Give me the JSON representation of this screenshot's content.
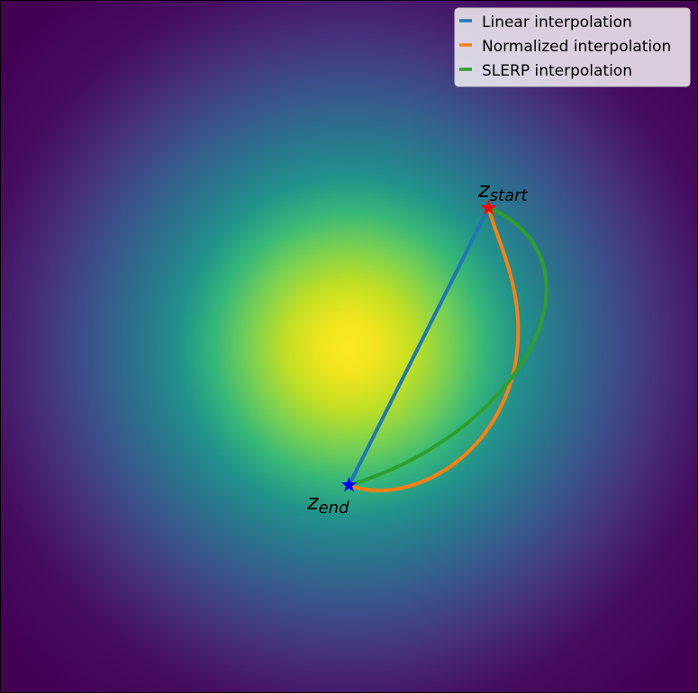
{
  "chart_data": {
    "type": "line",
    "title": "",
    "xlabel": "",
    "ylabel": "",
    "xlim": [
      -2.5,
      2.5
    ],
    "ylim": [
      -2.5,
      2.5
    ],
    "grid": false,
    "axes_visible": false,
    "background": {
      "type": "density",
      "description_key": "gaussian",
      "center": [
        0,
        0
      ],
      "sigma": 1.1,
      "colormap": "viridis"
    },
    "legend": {
      "placement": "top-right",
      "entries": [
        "Linear interpolation",
        "Normalized interpolation",
        "SLERP interpolation"
      ]
    },
    "points": {
      "start": {
        "symbol": "z",
        "subscript": "start",
        "x": 1.0,
        "y": 1.0,
        "color": "#ff0000"
      },
      "end": {
        "symbol": "z",
        "subscript": "end",
        "x": 0.0,
        "y": -1.0,
        "color": "#0000ff"
      }
    },
    "series": [
      {
        "name": "Linear interpolation",
        "method": "linear",
        "color": "#1f77b4"
      },
      {
        "name": "Normalized interpolation",
        "method": "normalized",
        "color": "#ff7f0e"
      },
      {
        "name": "SLERP interpolation",
        "method": "slerp",
        "color": "#2ca02c"
      }
    ]
  }
}
